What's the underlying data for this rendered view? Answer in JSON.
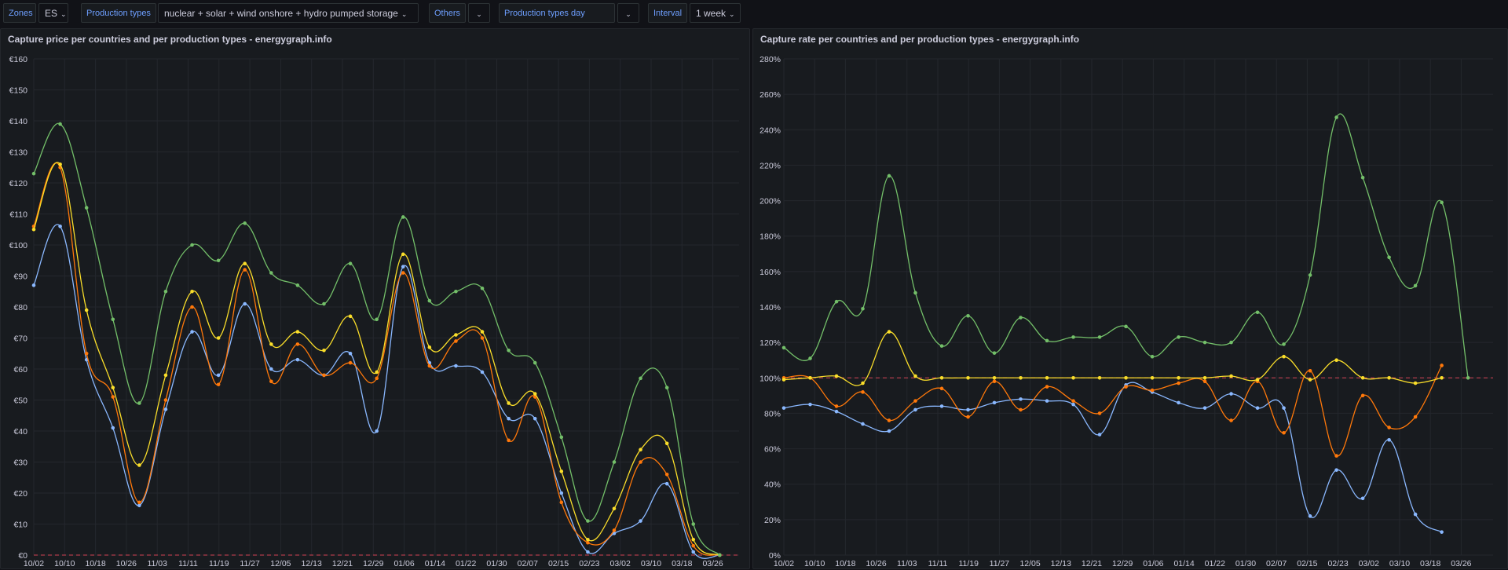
{
  "toolbar": {
    "zones_label": "Zones",
    "zones_value": "ES",
    "production_types_label": "Production types",
    "production_types_value": "nuclear + solar + wind onshore + hydro pumped storage",
    "others_label": "Others",
    "others_value": "",
    "day_ahead_label": "Production types day ahead",
    "day_ahead_value": "",
    "interval_label": "Interval",
    "interval_value": "1 week",
    "chevron_icon": "chevron-down-icon"
  },
  "colors": {
    "blue": "#8ab8ff",
    "orange": "#ff780a",
    "yellow": "#fade2a",
    "green": "#73bf69",
    "reference": "#f2495c"
  },
  "chart_data": [
    {
      "type": "line",
      "title": "Capture price per countries and per production types - energygraph.info",
      "x": [
        "10/02",
        "10/10",
        "10/18",
        "10/26",
        "11/03",
        "11/11",
        "11/19",
        "11/27",
        "12/05",
        "12/13",
        "12/21",
        "12/29",
        "01/06",
        "01/14",
        "01/22",
        "01/30",
        "02/07",
        "02/15",
        "02/23",
        "03/02",
        "03/10",
        "03/18",
        "03/26"
      ],
      "ylim": [
        0,
        160
      ],
      "yticks": [
        0,
        10,
        20,
        30,
        40,
        50,
        60,
        70,
        80,
        90,
        100,
        110,
        120,
        130,
        140,
        150,
        160
      ],
      "ytick_labels": [
        "€0",
        "€10",
        "€20",
        "€30",
        "€40",
        "€50",
        "€60",
        "€70",
        "€80",
        "€90",
        "€100",
        "€110",
        "€120",
        "€130",
        "€140",
        "€150",
        "€160"
      ],
      "reference_line": 0,
      "grid": true,
      "series": [
        {
          "color": "#8ab8ff",
          "points": [
            [
              0,
              87
            ],
            [
              1,
              106
            ],
            [
              2,
              63
            ],
            [
              3,
              41
            ],
            [
              4,
              16
            ],
            [
              5,
              47
            ],
            [
              6,
              72
            ],
            [
              7,
              58
            ],
            [
              8,
              81
            ],
            [
              9,
              60
            ],
            [
              10,
              63
            ],
            [
              11,
              58
            ],
            [
              12,
              65
            ],
            [
              13,
              40
            ],
            [
              14,
              93
            ],
            [
              15,
              62
            ],
            [
              16,
              61
            ],
            [
              17,
              59
            ],
            [
              18,
              44
            ],
            [
              19,
              44
            ],
            [
              20,
              20
            ],
            [
              21,
              1
            ],
            [
              22,
              7
            ],
            [
              23,
              11
            ],
            [
              24,
              23
            ],
            [
              25,
              1
            ],
            [
              26,
              0
            ]
          ]
        },
        {
          "color": "#ff780a",
          "points": [
            [
              0,
              106
            ],
            [
              1,
              125
            ],
            [
              2,
              65
            ],
            [
              3,
              51
            ],
            [
              4,
              17
            ],
            [
              5,
              50
            ],
            [
              6,
              80
            ],
            [
              7,
              55
            ],
            [
              8,
              92
            ],
            [
              9,
              56
            ],
            [
              10,
              68
            ],
            [
              11,
              58
            ],
            [
              12,
              62
            ],
            [
              13,
              57
            ],
            [
              14,
              91
            ],
            [
              15,
              61
            ],
            [
              16,
              69
            ],
            [
              17,
              70
            ],
            [
              18,
              37
            ],
            [
              19,
              51
            ],
            [
              20,
              17
            ],
            [
              21,
              4
            ],
            [
              22,
              8
            ],
            [
              23,
              30
            ],
            [
              24,
              26
            ],
            [
              25,
              3
            ],
            [
              26,
              0
            ]
          ]
        },
        {
          "color": "#fade2a",
          "points": [
            [
              0,
              105
            ],
            [
              1,
              126
            ],
            [
              2,
              79
            ],
            [
              3,
              54
            ],
            [
              4,
              29
            ],
            [
              5,
              58
            ],
            [
              6,
              85
            ],
            [
              7,
              70
            ],
            [
              8,
              94
            ],
            [
              9,
              68
            ],
            [
              10,
              72
            ],
            [
              11,
              66
            ],
            [
              12,
              77
            ],
            [
              13,
              59
            ],
            [
              14,
              97
            ],
            [
              15,
              67
            ],
            [
              16,
              71
            ],
            [
              17,
              72
            ],
            [
              18,
              49
            ],
            [
              19,
              52
            ],
            [
              20,
              27
            ],
            [
              21,
              5
            ],
            [
              22,
              15
            ],
            [
              23,
              34
            ],
            [
              24,
              36
            ],
            [
              25,
              5
            ],
            [
              26,
              0
            ]
          ]
        },
        {
          "color": "#73bf69",
          "points": [
            [
              0,
              123
            ],
            [
              1,
              139
            ],
            [
              2,
              112
            ],
            [
              3,
              76
            ],
            [
              4,
              49
            ],
            [
              5,
              85
            ],
            [
              6,
              100
            ],
            [
              7,
              95
            ],
            [
              8,
              107
            ],
            [
              9,
              91
            ],
            [
              10,
              87
            ],
            [
              11,
              81
            ],
            [
              12,
              94
            ],
            [
              13,
              76
            ],
            [
              14,
              109
            ],
            [
              15,
              82
            ],
            [
              16,
              85
            ],
            [
              17,
              86
            ],
            [
              18,
              66
            ],
            [
              19,
              62
            ],
            [
              20,
              38
            ],
            [
              21,
              11
            ],
            [
              22,
              30
            ],
            [
              23,
              57
            ],
            [
              24,
              54
            ],
            [
              25,
              10
            ],
            [
              26,
              0
            ]
          ]
        }
      ]
    },
    {
      "type": "line",
      "title": "Capture rate per countries and per production types - energygraph.info",
      "x": [
        "10/02",
        "10/10",
        "10/18",
        "10/26",
        "11/03",
        "11/11",
        "11/19",
        "11/27",
        "12/05",
        "12/13",
        "12/21",
        "12/29",
        "01/06",
        "01/14",
        "01/22",
        "01/30",
        "02/07",
        "02/15",
        "02/23",
        "03/02",
        "03/10",
        "03/18",
        "03/26"
      ],
      "ylim": [
        0,
        280
      ],
      "yticks": [
        0,
        20,
        40,
        60,
        80,
        100,
        120,
        140,
        160,
        180,
        200,
        220,
        240,
        260,
        280
      ],
      "ytick_labels": [
        "0%",
        "20%",
        "40%",
        "60%",
        "80%",
        "100%",
        "120%",
        "140%",
        "160%",
        "180%",
        "200%",
        "220%",
        "240%",
        "260%",
        "280%"
      ],
      "reference_line": 100,
      "grid": true,
      "series": [
        {
          "color": "#8ab8ff",
          "points": [
            [
              0,
              83
            ],
            [
              1,
              85
            ],
            [
              2,
              81
            ],
            [
              3,
              74
            ],
            [
              4,
              70
            ],
            [
              5,
              82
            ],
            [
              6,
              84
            ],
            [
              7,
              82
            ],
            [
              8,
              86
            ],
            [
              9,
              88
            ],
            [
              10,
              87
            ],
            [
              11,
              85
            ],
            [
              12,
              68
            ],
            [
              13,
              96
            ],
            [
              14,
              92
            ],
            [
              15,
              86
            ],
            [
              16,
              83
            ],
            [
              17,
              91
            ],
            [
              18,
              83
            ],
            [
              19,
              83
            ],
            [
              20,
              22
            ],
            [
              21,
              48
            ],
            [
              22,
              32
            ],
            [
              23,
              65
            ],
            [
              24,
              23
            ],
            [
              25,
              13
            ]
          ]
        },
        {
          "color": "#ff780a",
          "points": [
            [
              0,
              100
            ],
            [
              1,
              100
            ],
            [
              2,
              84
            ],
            [
              3,
              92
            ],
            [
              4,
              76
            ],
            [
              5,
              87
            ],
            [
              6,
              94
            ],
            [
              7,
              78
            ],
            [
              8,
              98
            ],
            [
              9,
              82
            ],
            [
              10,
              95
            ],
            [
              11,
              87
            ],
            [
              12,
              80
            ],
            [
              13,
              95
            ],
            [
              14,
              93
            ],
            [
              15,
              97
            ],
            [
              16,
              98
            ],
            [
              17,
              76
            ],
            [
              18,
              98
            ],
            [
              19,
              69
            ],
            [
              20,
              104
            ],
            [
              21,
              56
            ],
            [
              22,
              90
            ],
            [
              23,
              72
            ],
            [
              24,
              78
            ],
            [
              25,
              107
            ]
          ]
        },
        {
          "color": "#fade2a",
          "points": [
            [
              0,
              99
            ],
            [
              1,
              100
            ],
            [
              2,
              101
            ],
            [
              3,
              97
            ],
            [
              4,
              126
            ],
            [
              5,
              101
            ],
            [
              6,
              100
            ],
            [
              7,
              100
            ],
            [
              8,
              100
            ],
            [
              9,
              100
            ],
            [
              10,
              100
            ],
            [
              11,
              100
            ],
            [
              12,
              100
            ],
            [
              13,
              100
            ],
            [
              14,
              100
            ],
            [
              15,
              100
            ],
            [
              16,
              100
            ],
            [
              17,
              101
            ],
            [
              18,
              99
            ],
            [
              19,
              112
            ],
            [
              20,
              99
            ],
            [
              21,
              110
            ],
            [
              22,
              100
            ],
            [
              23,
              100
            ],
            [
              24,
              97
            ],
            [
              25,
              100
            ]
          ]
        },
        {
          "color": "#73bf69",
          "points": [
            [
              0,
              117
            ],
            [
              1,
              111
            ],
            [
              2,
              143
            ],
            [
              3,
              139
            ],
            [
              4,
              214
            ],
            [
              5,
              148
            ],
            [
              6,
              118
            ],
            [
              7,
              135
            ],
            [
              8,
              114
            ],
            [
              9,
              134
            ],
            [
              10,
              121
            ],
            [
              11,
              123
            ],
            [
              12,
              123
            ],
            [
              13,
              129
            ],
            [
              14,
              112
            ],
            [
              15,
              123
            ],
            [
              16,
              120
            ],
            [
              17,
              120
            ],
            [
              18,
              137
            ],
            [
              19,
              119
            ],
            [
              20,
              158
            ],
            [
              21,
              247
            ],
            [
              22,
              213
            ],
            [
              23,
              168
            ],
            [
              24,
              152
            ],
            [
              25,
              199
            ],
            [
              26,
              100
            ]
          ]
        }
      ]
    }
  ]
}
